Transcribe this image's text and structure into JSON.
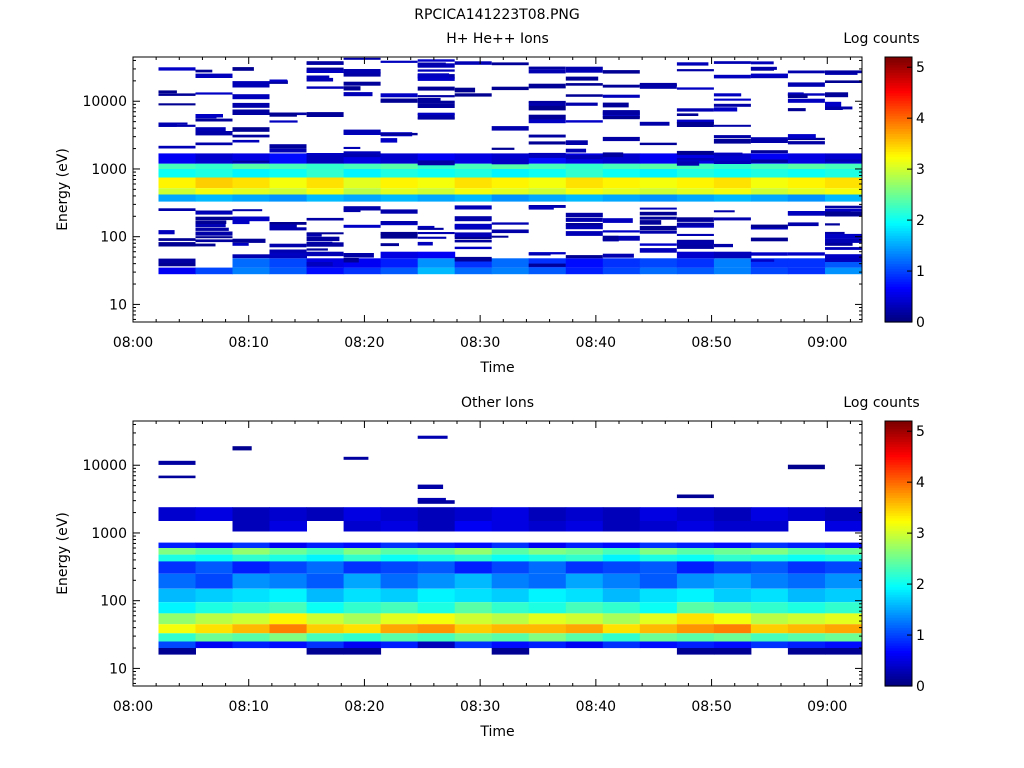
{
  "figure_title": "RPCICA141223T08.PNG",
  "chart_data": [
    {
      "type": "heatmap",
      "title": "H+ He++ Ions",
      "xlabel": "Time",
      "ylabel": "Energy (eV)",
      "x_tick_labels": [
        "08:00",
        "08:10",
        "08:20",
        "08:30",
        "08:40",
        "08:50",
        "09:00"
      ],
      "x_ticks_minutes": [
        0,
        10,
        20,
        30,
        40,
        50,
        60
      ],
      "xlim_minutes": [
        0,
        63
      ],
      "y_scale": "log",
      "ylim": [
        5.5,
        45000
      ],
      "y_tick_labels": [
        "10",
        "100",
        "1000",
        "10000"
      ],
      "y_ticks": [
        10,
        100,
        1000,
        10000
      ],
      "colorbar": {
        "label": "Log counts",
        "min": 0,
        "max": 5.2,
        "tick_labels": [
          "0",
          "1",
          "2",
          "3",
          "4",
          "5"
        ],
        "ticks": [
          0,
          1,
          2,
          3,
          4,
          5
        ]
      },
      "time_bins_minutes": [
        2.2,
        5.4,
        8.6,
        11.8,
        15.0,
        18.2,
        21.4,
        24.6,
        27.8,
        31.0,
        34.2,
        37.4,
        40.6,
        43.8,
        47.0,
        50.2,
        53.4,
        56.6,
        59.8,
        63.0
      ],
      "energy_band_log_counts": [
        {
          "energy_range": [
            520,
            750
          ],
          "values": [
            3.3,
            3.5,
            3.4,
            3.2,
            3.4,
            3.1,
            3.3,
            3.2,
            3.4,
            3.3,
            3.2,
            3.4,
            3.3,
            3.2,
            3.3,
            3.4,
            3.2,
            3.3,
            3.4
          ]
        },
        {
          "energy_range": [
            420,
            520
          ],
          "values": [
            3.0,
            3.2,
            3.1,
            3.0,
            3.2,
            2.9,
            3.1,
            3.0,
            3.2,
            3.1,
            3.0,
            3.2,
            3.1,
            3.0,
            3.1,
            3.2,
            3.0,
            3.1,
            3.2
          ]
        },
        {
          "energy_range": [
            750,
            1000
          ],
          "values": [
            2.0,
            2.1,
            1.9,
            2.0,
            2.2,
            1.9,
            2.1,
            2.0,
            2.1,
            1.9,
            2.0,
            2.2,
            2.0,
            1.9,
            2.1,
            2.0,
            2.1,
            2.0,
            2.1
          ]
        },
        {
          "energy_range": [
            330,
            420
          ],
          "values": [
            1.5,
            1.6,
            1.5,
            1.4,
            1.6,
            1.5,
            1.6,
            1.5,
            1.6,
            1.4,
            1.5,
            1.6,
            1.5,
            1.4,
            1.5,
            1.6,
            1.5,
            1.4,
            1.6
          ]
        },
        {
          "energy_range": [
            1000,
            1200
          ],
          "values": [
            2.3,
            2.2,
            2.4,
            2.3,
            2.2,
            2.3,
            2.4,
            2.2,
            2.3,
            2.4,
            2.3,
            2.2,
            2.3,
            2.4,
            2.3,
            2.2,
            2.3,
            2.4,
            2.3
          ]
        },
        {
          "energy_range": [
            1200,
            1700
          ],
          "values": [
            0.6,
            0.4,
            0.5,
            0.7,
            0.3,
            0.5,
            0.4,
            0.6,
            0.5,
            0.4,
            0.7,
            0.5,
            0.4,
            0.6,
            0.5,
            0.4,
            0.6,
            0.5,
            0.4
          ]
        },
        {
          "energy_range": [
            28,
            35
          ],
          "values": [
            0.6,
            1.0,
            1.3,
            1.1,
            0.7,
            0.9,
            1.1,
            1.6,
            1.2,
            1.3,
            1.1,
            0.8,
            1.0,
            1.2,
            1.1,
            1.3,
            1.0,
            0.9,
            1.4
          ]
        },
        {
          "energy_range": [
            35,
            48
          ],
          "values": [
            0.0,
            0.0,
            1.2,
            1.0,
            0.5,
            0.6,
            0.8,
            1.4,
            0.9,
            1.2,
            0.9,
            0.7,
            0.9,
            1.0,
            0.9,
            1.3,
            0.9,
            0.9,
            1.1
          ]
        },
        {
          "energy_range": [
            48,
            60
          ],
          "values": [
            0.0,
            0.0,
            0.0,
            0.3,
            0.0,
            0.0,
            0.5,
            0.6,
            0.0,
            0.0,
            0.0,
            0.0,
            0.0,
            0.0,
            0.4,
            0.3,
            0.0,
            0.0,
            0.0
          ]
        }
      ],
      "sparse_low_count_level": 0.25
    },
    {
      "type": "heatmap",
      "title": "Other Ions",
      "xlabel": "Time",
      "ylabel": "Energy (eV)",
      "x_tick_labels": [
        "08:00",
        "08:10",
        "08:20",
        "08:30",
        "08:40",
        "08:50",
        "09:00"
      ],
      "x_ticks_minutes": [
        0,
        10,
        20,
        30,
        40,
        50,
        60
      ],
      "xlim_minutes": [
        0,
        63
      ],
      "y_scale": "log",
      "ylim": [
        5.5,
        45000
      ],
      "y_tick_labels": [
        "10",
        "100",
        "1000",
        "10000"
      ],
      "y_ticks": [
        10,
        100,
        1000,
        10000
      ],
      "colorbar": {
        "label": "Log counts",
        "min": 0,
        "max": 5.2,
        "tick_labels": [
          "0",
          "1",
          "2",
          "3",
          "4",
          "5"
        ],
        "ticks": [
          0,
          1,
          2,
          3,
          4,
          5
        ]
      },
      "time_bins_minutes": [
        2.2,
        5.4,
        8.6,
        11.8,
        15.0,
        18.2,
        21.4,
        24.6,
        27.8,
        31.0,
        34.2,
        37.4,
        40.6,
        43.8,
        47.0,
        50.2,
        53.4,
        56.6,
        59.8,
        63.0
      ],
      "energy_band_log_counts": [
        {
          "energy_range": [
            1500,
            2400
          ],
          "values": [
            0.4,
            0.5,
            0.3,
            0.4,
            0.3,
            0.5,
            0.4,
            0.3,
            0.4,
            0.5,
            0.3,
            0.4,
            0.3,
            0.5,
            0.4,
            0.3,
            0.5,
            0.4,
            0.3
          ]
        },
        {
          "energy_range": [
            1050,
            1500
          ],
          "values": [
            0.0,
            0.0,
            0.3,
            0.5,
            0.0,
            0.4,
            0.5,
            0.3,
            0.6,
            0.5,
            0.4,
            0.5,
            0.3,
            0.4,
            0.5,
            0.4,
            0.4,
            0.0,
            0.5
          ]
        },
        {
          "energy_range": [
            600,
            720
          ],
          "values": [
            0.8,
            0.7,
            0.9,
            0.6,
            0.8,
            0.7,
            0.9,
            0.8,
            0.7,
            0.9,
            0.6,
            0.8,
            0.7,
            0.9,
            0.8,
            0.7,
            0.9,
            0.8,
            0.7
          ]
        },
        {
          "energy_range": [
            480,
            600
          ],
          "values": [
            2.6,
            2.4,
            2.7,
            2.5,
            2.3,
            2.6,
            2.4,
            2.5,
            2.7,
            2.4,
            2.6,
            2.5,
            2.3,
            2.6,
            2.4,
            2.5,
            2.6,
            2.4,
            2.5
          ]
        },
        {
          "energy_range": [
            380,
            480
          ],
          "values": [
            2.1,
            2.0,
            2.2,
            2.1,
            1.9,
            2.2,
            2.0,
            2.1,
            2.2,
            2.0,
            2.1,
            2.2,
            1.9,
            2.1,
            2.0,
            2.2,
            2.1,
            2.0,
            2.1
          ]
        },
        {
          "energy_range": [
            250,
            380
          ],
          "values": [
            0.9,
            1.1,
            0.8,
            1.0,
            1.2,
            0.9,
            1.0,
            1.1,
            0.8,
            1.0,
            1.2,
            0.9,
            1.0,
            1.1,
            0.8,
            1.0,
            1.1,
            0.9,
            1.0
          ]
        },
        {
          "energy_range": [
            150,
            250
          ],
          "values": [
            1.2,
            1.0,
            1.4,
            1.3,
            1.1,
            1.5,
            1.2,
            1.4,
            1.6,
            1.3,
            1.2,
            1.5,
            1.3,
            1.1,
            1.4,
            1.5,
            1.3,
            1.2,
            1.4
          ]
        },
        {
          "energy_range": [
            95,
            150
          ],
          "values": [
            1.6,
            1.7,
            1.8,
            1.9,
            1.6,
            1.8,
            1.7,
            1.9,
            1.8,
            1.7,
            1.9,
            1.8,
            1.6,
            1.8,
            1.9,
            1.7,
            1.8,
            1.6,
            1.7
          ]
        },
        {
          "energy_range": [
            65,
            95
          ],
          "values": [
            1.9,
            2.1,
            2.2,
            2.3,
            2.0,
            2.2,
            2.3,
            2.1,
            2.4,
            2.2,
            2.1,
            2.3,
            2.2,
            2.0,
            2.4,
            2.3,
            2.2,
            2.1,
            2.2
          ]
        },
        {
          "energy_range": [
            45,
            65
          ],
          "values": [
            2.7,
            2.9,
            3.0,
            3.3,
            3.0,
            2.8,
            3.1,
            3.2,
            3.0,
            2.9,
            3.1,
            3.0,
            2.8,
            3.1,
            3.4,
            3.2,
            2.9,
            3.0,
            3.1
          ]
        },
        {
          "energy_range": [
            33,
            45
          ],
          "values": [
            3.2,
            3.4,
            3.6,
            3.9,
            3.5,
            3.4,
            3.7,
            3.8,
            3.5,
            3.6,
            3.6,
            3.7,
            3.4,
            3.6,
            3.8,
            3.9,
            3.5,
            3.6,
            3.7
          ]
        },
        {
          "energy_range": [
            25,
            33
          ],
          "values": [
            2.2,
            2.5,
            2.4,
            2.6,
            2.3,
            2.2,
            2.4,
            2.3,
            2.5,
            2.4,
            2.6,
            2.4,
            2.2,
            2.5,
            2.4,
            2.5,
            2.3,
            2.4,
            2.5
          ]
        },
        {
          "energy_range": [
            20,
            25
          ],
          "values": [
            1.0,
            0.6,
            0.8,
            0.7,
            0.9,
            0.6,
            0.8,
            0.3,
            0.9,
            0.7,
            0.8,
            0.6,
            0.9,
            0.7,
            0.8,
            0.7,
            0.9,
            0.8,
            0.7
          ]
        },
        {
          "energy_range": [
            16,
            20
          ],
          "values": [
            0.1,
            0.0,
            0.0,
            0.0,
            0.1,
            0.1,
            0.0,
            0.0,
            0.0,
            0.1,
            0.0,
            0.0,
            0.0,
            0.0,
            0.1,
            0.1,
            0.0,
            0.1,
            0.1
          ]
        }
      ],
      "sparse_low_count_level": 0.2
    }
  ]
}
